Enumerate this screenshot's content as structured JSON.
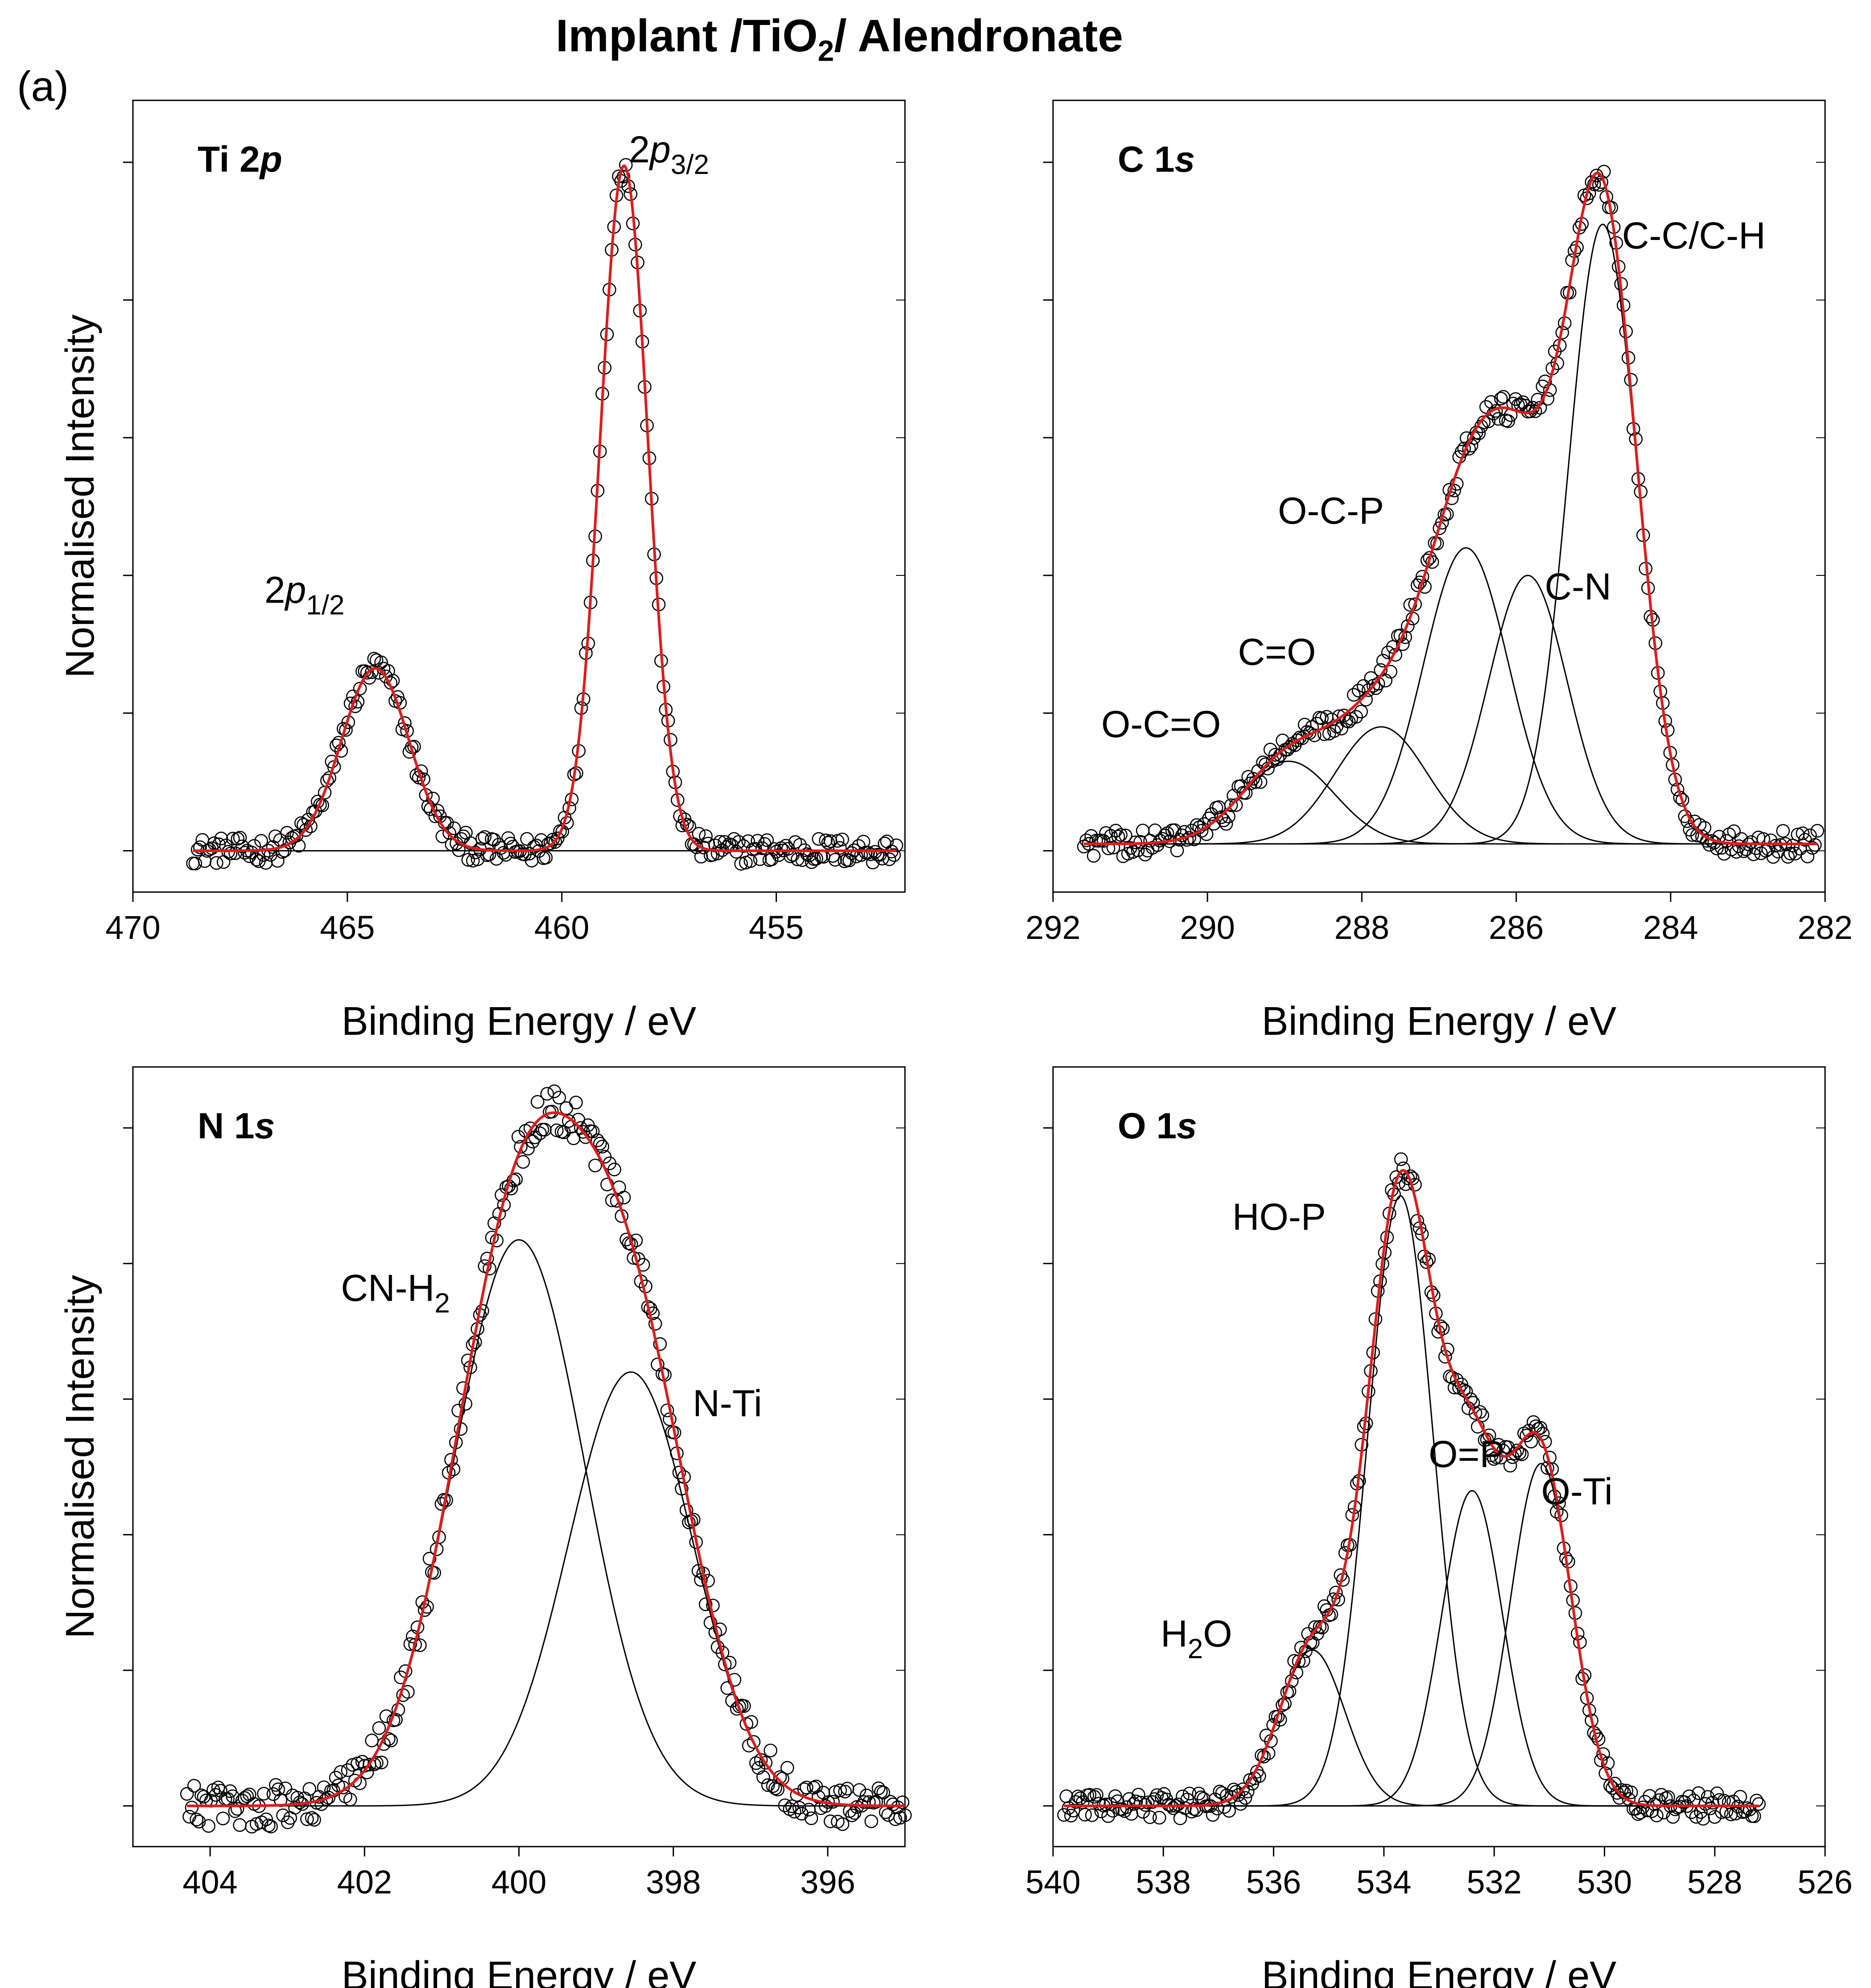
{
  "figure": {
    "title_prefix": "Implant /TiO",
    "title_sub": "2",
    "title_suffix": "/ Alendronate",
    "panel_label": "(a)"
  },
  "chart_data": [
    {
      "type": "scatter",
      "panel": "Ti 2p",
      "title_main": "Ti 2",
      "title_italic": "p",
      "xlabel": "Binding Energy / eV",
      "ylabel": "Normalised Intensity",
      "xlim": [
        470,
        452
      ],
      "ylim": [
        -0.06,
        1.09
      ],
      "yticks": [
        0,
        0.2,
        0.4,
        0.6,
        0.8,
        1.0
      ],
      "xticks": [
        470,
        465,
        460,
        455
      ],
      "x_range": [
        468.6,
        452.2
      ],
      "baseline": 0.0,
      "noise": 0.012,
      "envelope": "sum",
      "components": [
        {
          "name": "2p1/2",
          "center": 464.35,
          "fwhm": 1.85,
          "height": 0.265
        },
        {
          "name": "2p3/2",
          "center": 458.55,
          "fwhm": 1.3,
          "height": 0.995
        }
      ],
      "annotations": [
        {
          "base": "2p",
          "sub": "1/2",
          "x": 466.0,
          "y": 0.36
        },
        {
          "base": "2p",
          "sub": "3/2",
          "x": 457.5,
          "y": 1.0
        }
      ]
    },
    {
      "type": "scatter",
      "panel": "C 1s",
      "title_main": "C 1",
      "title_italic": "s",
      "xlabel": "Binding Energy / eV",
      "ylabel": "",
      "xlim": [
        292,
        282
      ],
      "ylim": [
        -0.06,
        1.09
      ],
      "yticks": [
        0,
        0.2,
        0.4,
        0.6,
        0.8,
        1.0
      ],
      "xticks": [
        292,
        290,
        288,
        286,
        284,
        282
      ],
      "x_range": [
        291.6,
        282.1
      ],
      "baseline": 0.01,
      "noise": 0.012,
      "envelope": "sum",
      "components": [
        {
          "name": "O-C=O",
          "center": 288.95,
          "fwhm": 1.4,
          "height": 0.12
        },
        {
          "name": "C=O",
          "center": 287.75,
          "fwhm": 1.4,
          "height": 0.17
        },
        {
          "name": "O-C-P",
          "center": 286.65,
          "fwhm": 1.3,
          "height": 0.43
        },
        {
          "name": "C-N",
          "center": 285.85,
          "fwhm": 1.2,
          "height": 0.39
        },
        {
          "name": "C-C/C-H",
          "center": 284.88,
          "fwhm": 1.05,
          "height": 0.9
        }
      ],
      "annotations": [
        {
          "base": "C-C/C-H",
          "sub": "",
          "x": 283.7,
          "y": 0.875
        },
        {
          "base": "O-C-P",
          "sub": "",
          "x": 288.4,
          "y": 0.475
        },
        {
          "base": "C-N",
          "sub": "",
          "x": 285.2,
          "y": 0.365
        },
        {
          "base": "C=O",
          "sub": "",
          "x": 289.1,
          "y": 0.27
        },
        {
          "base": "O-C=O",
          "sub": "",
          "x": 290.6,
          "y": 0.165
        }
      ]
    },
    {
      "type": "scatter",
      "panel": "N 1s",
      "title_main": "N 1",
      "title_italic": "s",
      "xlabel": "Binding Energy / eV",
      "ylabel": "Normalised Intensity",
      "xlim": [
        405,
        395
      ],
      "ylim": [
        -0.06,
        1.09
      ],
      "yticks": [
        0,
        0.2,
        0.4,
        0.6,
        0.8,
        1.0
      ],
      "xticks": [
        404,
        402,
        400,
        398,
        396
      ],
      "x_range": [
        404.3,
        395.0
      ],
      "baseline": 0.0,
      "noise": 0.02,
      "envelope": "sum",
      "components": [
        {
          "name": "CN-H2",
          "center": 400.0,
          "fwhm": 2.0,
          "height": 0.835
        },
        {
          "name": "N-Ti",
          "center": 398.55,
          "fwhm": 1.9,
          "height": 0.64
        }
      ],
      "annotations": [
        {
          "base": "CN-H",
          "sub": "2",
          "x": 401.6,
          "y": 0.745
        },
        {
          "base": "N-Ti",
          "sub": "",
          "x": 397.3,
          "y": 0.575
        }
      ]
    },
    {
      "type": "scatter",
      "panel": "O 1s",
      "title_main": "O 1",
      "title_italic": "s",
      "xlabel": "Binding Energy / eV",
      "ylabel": "",
      "xlim": [
        540,
        526
      ],
      "ylim": [
        -0.06,
        1.09
      ],
      "yticks": [
        0,
        0.2,
        0.4,
        0.6,
        0.8,
        1.0
      ],
      "xticks": [
        540,
        538,
        536,
        534,
        532,
        530,
        528,
        526
      ],
      "x_range": [
        539.8,
        527.2
      ],
      "baseline": 0.0,
      "noise": 0.012,
      "envelope": "sum",
      "components": [
        {
          "name": "H2O",
          "center": 535.3,
          "fwhm": 1.4,
          "height": 0.23
        },
        {
          "name": "HO-P",
          "center": 533.7,
          "fwhm": 1.4,
          "height": 0.9
        },
        {
          "name": "O=P",
          "center": 532.4,
          "fwhm": 1.3,
          "height": 0.465
        },
        {
          "name": "O-Ti",
          "center": 531.15,
          "fwhm": 1.3,
          "height": 0.505
        }
      ],
      "annotations": [
        {
          "base": "HO-P",
          "sub": "",
          "x": 535.9,
          "y": 0.85
        },
        {
          "base": "O=P",
          "sub": "",
          "x": 532.5,
          "y": 0.5
        },
        {
          "base": "O-Ti",
          "sub": "",
          "x": 530.5,
          "y": 0.445
        },
        {
          "base": "H",
          "sub": "2",
          "suffix": "O",
          "x": 537.4,
          "y": 0.235
        }
      ]
    }
  ]
}
